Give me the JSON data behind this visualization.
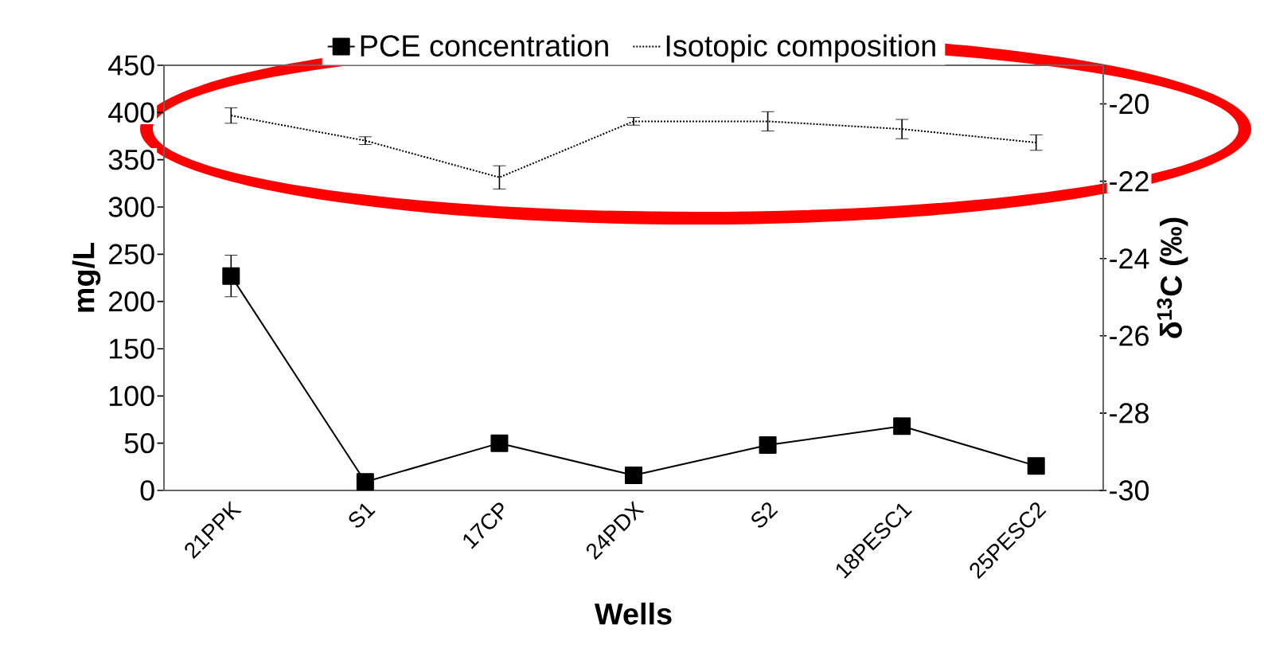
{
  "chart_data": {
    "type": "line",
    "categories": [
      "21PPK",
      "S1",
      "17CP",
      "24PDX",
      "S2",
      "18PESC1",
      "25PESC2"
    ],
    "series": [
      {
        "name": "PCE concentration",
        "color": "#000000",
        "marker": "square",
        "line_style": "solid",
        "values": [
          227,
          9,
          50,
          16,
          48,
          68,
          26
        ],
        "errors": [
          22,
          null,
          null,
          null,
          null,
          null,
          null
        ]
      },
      {
        "name": "Isotopic composition",
        "color": "#000000",
        "marker": "none",
        "line_style": "dotted",
        "axis": "y2",
        "values": [
          -20.3,
          -20.95,
          -21.9,
          -20.45,
          -20.45,
          -20.65,
          -21.0
        ],
        "errors": [
          0.2,
          0.1,
          0.3,
          0.1,
          0.25,
          0.25,
          0.2
        ]
      }
    ],
    "xlabel": "Wells",
    "ylabel": "mg/L",
    "y2label": "δ$^{13}$C (‰)",
    "ylim": [
      0,
      450
    ],
    "yticks": [
      0,
      50,
      100,
      150,
      200,
      250,
      300,
      350,
      400,
      450
    ],
    "y2lim": [
      -30,
      -19
    ],
    "y2ticks": [
      -30,
      -28,
      -26,
      -24,
      -22,
      -20
    ],
    "legend": "top"
  }
}
